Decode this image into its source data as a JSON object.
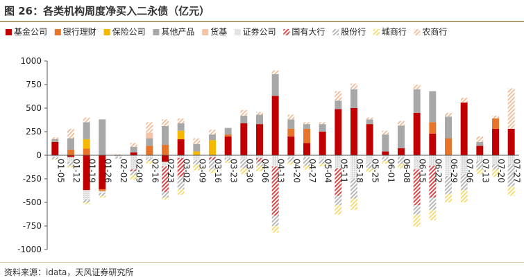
{
  "title": "图 26：各类机构周度净买入二永债（亿元）",
  "source": "资料来源：idata，天风证券研究所",
  "chart_data": {
    "type": "bar",
    "stacked": true,
    "grid": false,
    "legend_position": "top",
    "ylim": [
      -1000,
      1000
    ],
    "yticks": [
      -1000,
      -750,
      -500,
      -250,
      0,
      250,
      500,
      750,
      1000
    ],
    "categories": [
      "01-05",
      "01-12",
      "01-19",
      "01-26",
      "02-02",
      "02-09",
      "02-16",
      "02-23",
      "03-02",
      "03-09",
      "03-16",
      "03-23",
      "03-30",
      "04-06",
      "04-13",
      "04-20",
      "04-27",
      "05-04",
      "05-11",
      "05-18",
      "05-25",
      "06-01",
      "06-08",
      "06-15",
      "06-22",
      "06-29",
      "07-06",
      "07-13",
      "07-20",
      "07-27"
    ],
    "series": [
      {
        "name": "基金公司",
        "color": "#c00000",
        "pattern": "solid",
        "values": [
          140,
          -20,
          -370,
          -360,
          -5,
          30,
          0,
          -70,
          170,
          0,
          0,
          200,
          340,
          330,
          630,
          200,
          130,
          250,
          490,
          500,
          330,
          40,
          75,
          450,
          230,
          0,
          560,
          100,
          280,
          280
        ]
      },
      {
        "name": "银行理财",
        "color": "#e8742a",
        "pattern": "solid",
        "values": [
          0,
          60,
          70,
          -20,
          0,
          0,
          100,
          110,
          0,
          0,
          0,
          20,
          0,
          0,
          0,
          80,
          150,
          0,
          0,
          0,
          0,
          0,
          0,
          0,
          120,
          180,
          0,
          0,
          110,
          0
        ]
      },
      {
        "name": "保险公司",
        "color": "#f5b800",
        "pattern": "solid",
        "values": [
          0,
          0,
          100,
          0,
          0,
          0,
          0,
          0,
          90,
          40,
          160,
          0,
          0,
          0,
          0,
          0,
          0,
          0,
          0,
          0,
          0,
          0,
          0,
          0,
          0,
          0,
          0,
          0,
          0,
          0
        ]
      },
      {
        "name": "其他产品",
        "color": "#a8a8a8",
        "pattern": "solid",
        "values": [
          30,
          120,
          180,
          380,
          0,
          60,
          80,
          200,
          80,
          80,
          60,
          70,
          80,
          100,
          230,
          100,
          50,
          80,
          90,
          200,
          50,
          180,
          240,
          250,
          330,
          230,
          0,
          40,
          0,
          0
        ]
      },
      {
        "name": "货基",
        "color": "#f5c4a8",
        "pattern": "solid",
        "values": [
          0,
          0,
          0,
          0,
          0,
          0,
          60,
          0,
          0,
          0,
          0,
          0,
          0,
          0,
          0,
          0,
          0,
          0,
          0,
          0,
          0,
          0,
          0,
          0,
          0,
          0,
          0,
          0,
          0,
          0
        ]
      },
      {
        "name": "证券公司",
        "color": "#c8c8c8",
        "pattern": "dots",
        "values": [
          -20,
          -50,
          -100,
          -20,
          -10,
          -150,
          -30,
          -50,
          -30,
          -50,
          -20,
          -30,
          -40,
          -30,
          -120,
          -20,
          -20,
          -40,
          -140,
          -250,
          -80,
          -20,
          -20,
          -150,
          -110,
          -220,
          -200,
          -60,
          -100,
          -100
        ]
      },
      {
        "name": "国有大行",
        "color": "#d84848",
        "pattern": "hatch",
        "values": [
          0,
          0,
          0,
          0,
          0,
          -20,
          0,
          -270,
          -200,
          0,
          -30,
          0,
          0,
          -40,
          -520,
          0,
          0,
          0,
          -290,
          0,
          0,
          0,
          0,
          -380,
          -340,
          0,
          0,
          0,
          0,
          0
        ]
      },
      {
        "name": "股份行",
        "color": "#b8b8b8",
        "pattern": "hatch",
        "values": [
          -20,
          -40,
          -30,
          -30,
          -20,
          -40,
          -30,
          -60,
          -130,
          -50,
          -100,
          -30,
          -100,
          -40,
          -110,
          -50,
          -90,
          -50,
          -100,
          -210,
          -60,
          -40,
          -70,
          -100,
          -130,
          -190,
          -170,
          -90,
          -50,
          -230
        ]
      },
      {
        "name": "城商行",
        "color": "#f5dc78",
        "pattern": "hatch",
        "values": [
          -10,
          -20,
          -20,
          -20,
          0,
          -50,
          -30,
          -20,
          -60,
          -60,
          -40,
          -20,
          -60,
          -60,
          -70,
          -30,
          -40,
          -30,
          -100,
          -120,
          -40,
          -30,
          -50,
          -130,
          -110,
          -90,
          -130,
          -50,
          -80,
          -100
        ]
      },
      {
        "name": "农商行",
        "color": "#f0c0a0",
        "pattern": "hatch",
        "values": [
          20,
          100,
          50,
          0,
          10,
          40,
          110,
          70,
          50,
          60,
          50,
          0,
          60,
          30,
          40,
          50,
          20,
          20,
          100,
          60,
          20,
          40,
          50,
          50,
          0,
          40,
          50,
          60,
          30,
          430
        ]
      }
    ]
  }
}
